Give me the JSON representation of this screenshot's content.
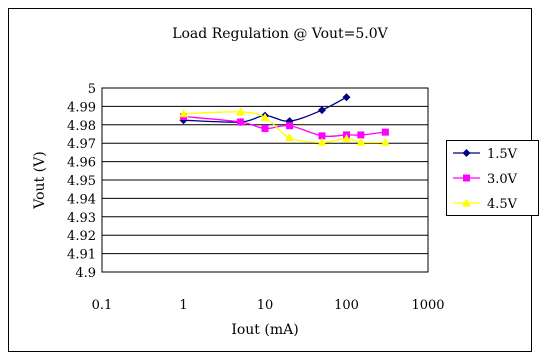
{
  "chart_data": {
    "type": "line",
    "title": "Load Regulation @ Vout=5.0V",
    "xlabel": "Iout (mA)",
    "ylabel": "Vout (V)",
    "x_scale": "log",
    "xlim": [
      0.1,
      1000
    ],
    "ylim": [
      4.9,
      5.0
    ],
    "x_ticks": [
      "0.1",
      "1",
      "10",
      "100",
      "1000"
    ],
    "y_ticks": [
      "4.9",
      "4.91",
      "4.92",
      "4.93",
      "4.94",
      "4.95",
      "4.96",
      "4.97",
      "4.98",
      "4.99",
      "5"
    ],
    "grid": "horizontal",
    "legend_position": "right",
    "series": [
      {
        "name": "1.5V",
        "color": "#000080",
        "marker": "diamond",
        "x": [
          1,
          5,
          10,
          20,
          50,
          100
        ],
        "y": [
          4.9825,
          4.9815,
          4.985,
          4.982,
          4.988,
          4.995
        ]
      },
      {
        "name": "3.0V",
        "color": "#ff00ff",
        "marker": "square",
        "x": [
          1,
          5,
          10,
          20,
          50,
          100,
          150,
          300
        ],
        "y": [
          4.9845,
          4.9815,
          4.978,
          4.9795,
          4.974,
          4.9745,
          4.9745,
          4.976
        ]
      },
      {
        "name": "4.5V",
        "color": "#ffff00",
        "marker": "triangle",
        "x": [
          1,
          5,
          10,
          20,
          50,
          100,
          150,
          300
        ],
        "y": [
          4.986,
          4.987,
          4.984,
          4.973,
          4.9705,
          4.9725,
          4.9705,
          4.9705
        ]
      }
    ]
  }
}
